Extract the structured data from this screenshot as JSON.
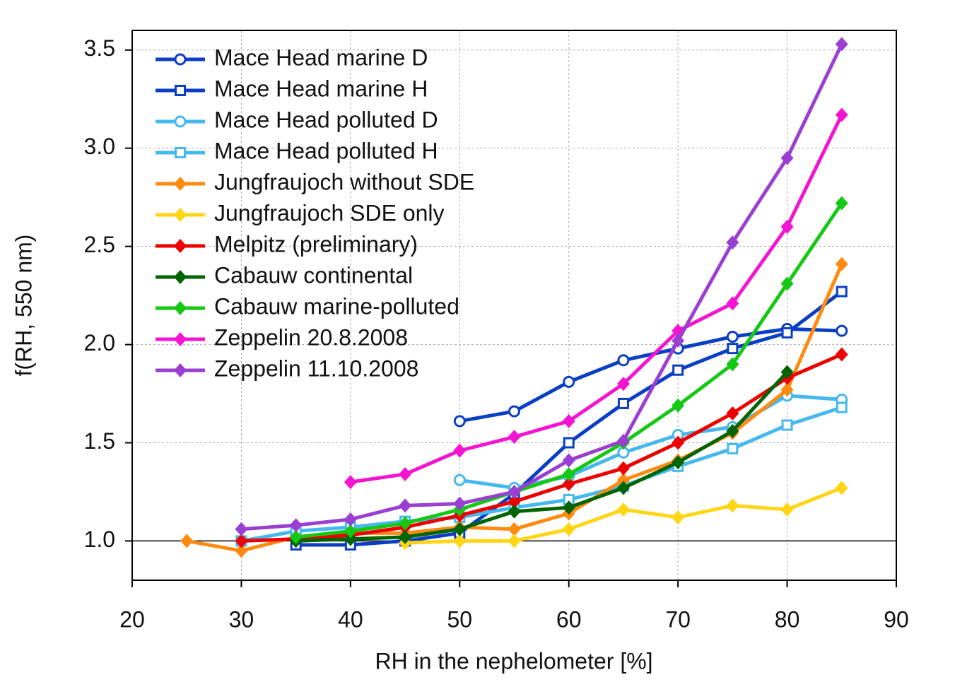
{
  "chart_data": {
    "type": "line",
    "xlabel": "RH in the nephelometer [%]",
    "ylabel": "f(RH, 550 nm)",
    "xlim": [
      20,
      90
    ],
    "ylim": [
      0.8,
      3.6
    ],
    "xticks": [
      20,
      30,
      40,
      50,
      60,
      70,
      80,
      90
    ],
    "yticks": [
      {
        "value": 1,
        "label": "1.0"
      },
      1.5,
      {
        "value": 2,
        "label": "2.0"
      },
      2.5,
      {
        "value": 3,
        "label": "3.0"
      },
      3.5
    ],
    "grid": true,
    "hline": 1,
    "legend": "upper left",
    "series": [
      {
        "name": "Mace Head marine D",
        "color": "#0a3fc4",
        "marker": "circle",
        "x": [
          50,
          55,
          60,
          65,
          70,
          75,
          80,
          85
        ],
        "values": [
          1.61,
          1.66,
          1.81,
          1.92,
          1.98,
          2.04,
          2.08,
          2.07
        ]
      },
      {
        "name": "Mace Head marine H",
        "color": "#0a3fc4",
        "marker": "square",
        "x": [
          35,
          40,
          45,
          50,
          55,
          60,
          65,
          70,
          75,
          80,
          85
        ],
        "values": [
          0.98,
          0.98,
          1.0,
          1.04,
          1.24,
          1.5,
          1.7,
          1.87,
          1.98,
          2.06,
          2.27
        ]
      },
      {
        "name": "Mace Head polluted D",
        "color": "#45b9ee",
        "marker": "circle",
        "x": [
          50,
          55,
          60,
          65,
          70,
          75,
          80,
          85
        ],
        "values": [
          1.31,
          1.27,
          1.33,
          1.45,
          1.54,
          1.58,
          1.74,
          1.72
        ]
      },
      {
        "name": "Mace Head polluted H",
        "color": "#45b9ee",
        "marker": "square",
        "x": [
          30,
          35,
          40,
          45,
          50,
          55,
          60,
          65,
          70,
          75,
          80,
          85
        ],
        "values": [
          1.0,
          1.05,
          1.07,
          1.1,
          1.12,
          1.17,
          1.21,
          1.28,
          1.38,
          1.47,
          1.59,
          1.68
        ]
      },
      {
        "name": "Jungfraujoch without SDE",
        "color": "#ff8a10",
        "marker": "diamond",
        "x": [
          25,
          30,
          35,
          40,
          45,
          50,
          55,
          60,
          65,
          70,
          75,
          80,
          85
        ],
        "values": [
          1.0,
          0.95,
          1.02,
          1.04,
          1.04,
          1.07,
          1.06,
          1.14,
          1.31,
          1.41,
          1.55,
          1.77,
          2.41
        ]
      },
      {
        "name": "Jungfraujoch SDE only",
        "color": "#ffd514",
        "marker": "diamond",
        "x": [
          45,
          50,
          55,
          60,
          65,
          70,
          75,
          80,
          85
        ],
        "values": [
          0.99,
          1.0,
          1.0,
          1.06,
          1.16,
          1.12,
          1.18,
          1.16,
          1.27
        ]
      },
      {
        "name": "Melpitz (preliminary)",
        "color": "#ee0000",
        "marker": "diamond",
        "x": [
          30,
          35,
          40,
          45,
          50,
          55,
          60,
          65,
          70,
          75,
          80,
          85
        ],
        "values": [
          1.0,
          1.01,
          1.03,
          1.07,
          1.13,
          1.2,
          1.29,
          1.37,
          1.5,
          1.65,
          1.83,
          1.95
        ]
      },
      {
        "name": "Cabauw continental",
        "color": "#006400",
        "marker": "diamond",
        "x": [
          35,
          40,
          45,
          50,
          55,
          60,
          65,
          70,
          75,
          80
        ],
        "values": [
          1.0,
          1.01,
          1.02,
          1.06,
          1.15,
          1.17,
          1.27,
          1.4,
          1.56,
          1.86
        ]
      },
      {
        "name": "Cabauw marine-polluted",
        "color": "#14c814",
        "marker": "diamond",
        "x": [
          35,
          40,
          45,
          50,
          55,
          60,
          65,
          70,
          75,
          80,
          85
        ],
        "values": [
          1.02,
          1.05,
          1.09,
          1.16,
          1.25,
          1.34,
          1.5,
          1.69,
          1.9,
          2.31,
          2.72
        ]
      },
      {
        "name": "Zeppelin 20.8.2008",
        "color": "#f514d2",
        "marker": "diamond",
        "x": [
          40,
          45,
          50,
          55,
          60,
          65,
          70,
          75,
          80,
          85
        ],
        "values": [
          1.3,
          1.34,
          1.46,
          1.53,
          1.61,
          1.8,
          2.07,
          2.21,
          2.6,
          3.17
        ]
      },
      {
        "name": "Zeppelin 11.10.2008",
        "color": "#9b3fd2",
        "marker": "diamond",
        "x": [
          30,
          35,
          40,
          45,
          50,
          55,
          60,
          65,
          70,
          75,
          80,
          85
        ],
        "values": [
          1.06,
          1.08,
          1.11,
          1.18,
          1.19,
          1.25,
          1.41,
          1.51,
          2.02,
          2.52,
          2.95,
          3.53
        ]
      }
    ]
  }
}
